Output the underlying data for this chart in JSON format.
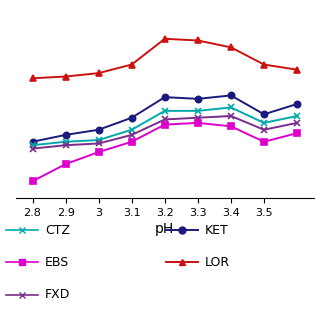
{
  "ph": [
    2.8,
    2.9,
    3.0,
    3.1,
    3.2,
    3.3,
    3.4,
    3.5,
    3.6
  ],
  "LOR": [
    3.55,
    3.56,
    3.58,
    3.63,
    3.78,
    3.77,
    3.73,
    3.63,
    3.6
  ],
  "KET": [
    3.18,
    3.22,
    3.25,
    3.32,
    3.44,
    3.43,
    3.45,
    3.34,
    3.4
  ],
  "CTZ": [
    3.16,
    3.18,
    3.19,
    3.25,
    3.36,
    3.36,
    3.38,
    3.29,
    3.33
  ],
  "FXD": [
    3.14,
    3.16,
    3.17,
    3.22,
    3.31,
    3.32,
    3.33,
    3.25,
    3.29
  ],
  "EBS": [
    2.95,
    3.05,
    3.12,
    3.18,
    3.28,
    3.29,
    3.27,
    3.18,
    3.23
  ],
  "colors": {
    "LOR": "#cc1111",
    "KET": "#1a1a7c",
    "CTZ": "#00aaaa",
    "FXD": "#7b2d8b",
    "EBS": "#dd00cc"
  },
  "markers": {
    "LOR": "^",
    "KET": "o",
    "CTZ": "x",
    "FXD": "x",
    "EBS": "s"
  },
  "xlabel": "pH",
  "ylim": [
    2.85,
    3.95
  ],
  "xlim": [
    2.75,
    3.65
  ],
  "xticks": [
    2.8,
    2.9,
    3.0,
    3.1,
    3.2,
    3.3,
    3.4,
    3.5
  ],
  "xticklabels": [
    "2.8",
    "2.9",
    "3",
    "3.1",
    "3.2",
    "3.3",
    "3.4",
    "3.5"
  ],
  "background_color": "#ffffff",
  "legend_left": [
    "CTZ",
    "EBS",
    "FXD"
  ],
  "legend_right": [
    "KET",
    "LOR"
  ]
}
